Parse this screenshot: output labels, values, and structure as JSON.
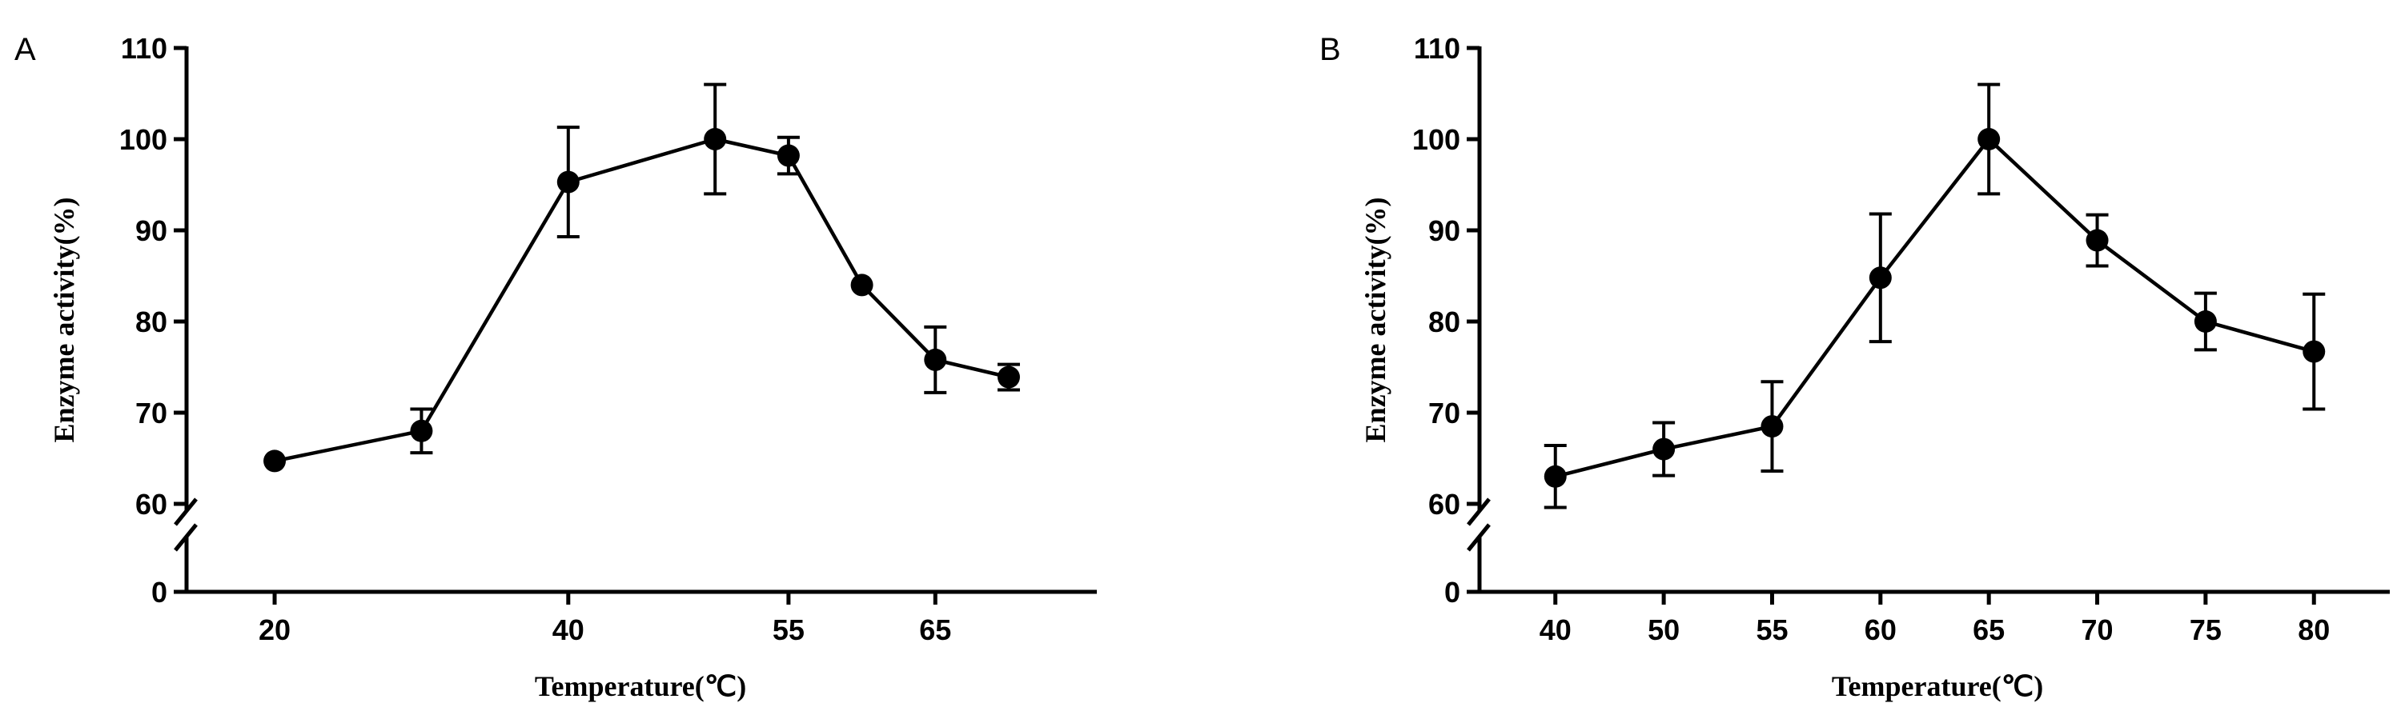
{
  "chart_data": [
    {
      "panel": "A",
      "type": "line",
      "xlabel": "Temperature(℃)",
      "ylabel": "Enzyme activity(%)",
      "x_tick_labels": [
        "20",
        "40",
        "55",
        "65"
      ],
      "x": [
        20,
        30,
        40,
        50,
        55,
        60,
        65,
        70
      ],
      "x_tick_positions": [
        20,
        40,
        55,
        65
      ],
      "xlim": [
        14,
        76
      ],
      "y_ticks_upper": [
        60,
        70,
        80,
        90,
        100,
        110
      ],
      "y_tick_lower": 0,
      "y_axis_break": [
        0,
        60
      ],
      "ylim": [
        0,
        110
      ],
      "values": [
        64.7,
        68.0,
        95.3,
        100.0,
        98.2,
        84.0,
        75.8,
        73.9
      ],
      "errors": [
        0.4,
        2.4,
        6.0,
        6.0,
        2.0,
        0.5,
        3.6,
        1.4
      ],
      "grid": false
    },
    {
      "panel": "B",
      "type": "line",
      "xlabel": "Temperature(℃)",
      "ylabel": "Enzyme activity(%)",
      "x_tick_labels": [
        "40",
        "50",
        "55",
        "60",
        "65",
        "70",
        "75",
        "80"
      ],
      "x": [
        1,
        2,
        3,
        4,
        5,
        6,
        7,
        8
      ],
      "x_tick_positions": [
        1,
        2,
        3,
        4,
        5,
        6,
        7,
        8
      ],
      "xlim": [
        0.3,
        8.7
      ],
      "y_ticks_upper": [
        60,
        70,
        80,
        90,
        100,
        110
      ],
      "y_tick_lower": 0,
      "y_axis_break": [
        0,
        60
      ],
      "ylim": [
        0,
        110
      ],
      "values": [
        63.0,
        66.0,
        68.5,
        84.8,
        100.0,
        88.9,
        80.0,
        76.7
      ],
      "errors": [
        3.4,
        2.9,
        4.9,
        7.0,
        6.0,
        2.8,
        3.1,
        6.3
      ],
      "grid": false
    }
  ]
}
